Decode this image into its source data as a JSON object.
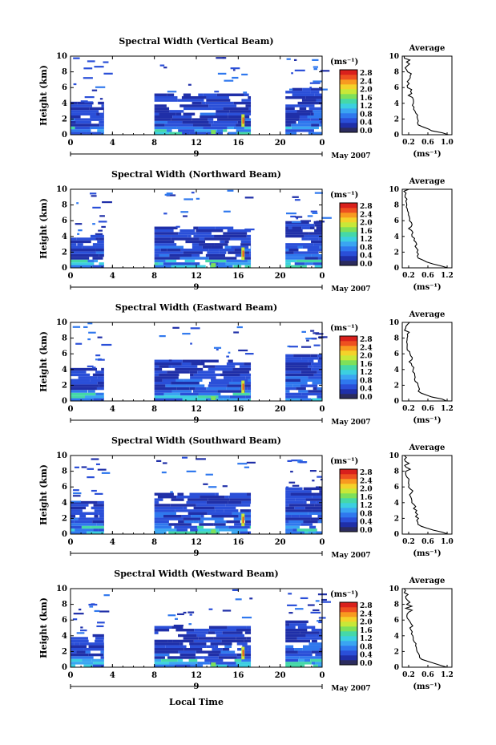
{
  "chart_data": [
    {
      "type": "heatmap",
      "title": "Spectral Width (Vertical Beam)",
      "ylabel": "Height (km)",
      "xticks": [
        "0",
        "4",
        "8",
        "12",
        "16",
        "20",
        "0"
      ],
      "yticks": [
        "0",
        "2",
        "4",
        "6",
        "8",
        "10"
      ],
      "date_label": "May 2007",
      "day_label": "9",
      "colorbar_unit": "(ms⁻¹)",
      "colorbar_ticks": [
        "0.0",
        "0.4",
        "0.8",
        "1.2",
        "1.6",
        "2.0",
        "2.4",
        "2.8"
      ],
      "avg": {
        "title": "Average",
        "xlabel": "(ms⁻¹)",
        "xticks": [
          "0.2",
          "0.6",
          "1.0"
        ],
        "yticks": [
          "0",
          "2",
          "4",
          "6",
          "8",
          "10"
        ]
      }
    },
    {
      "type": "heatmap",
      "title": "Spectral Width (Northward Beam)",
      "ylabel": "Height (km)",
      "xticks": [
        "0",
        "4",
        "8",
        "12",
        "16",
        "20",
        "0"
      ],
      "yticks": [
        "0",
        "2",
        "4",
        "6",
        "8",
        "10"
      ],
      "date_label": "May 2007",
      "day_label": "9",
      "colorbar_unit": "(ms⁻¹)",
      "colorbar_ticks": [
        "0.0",
        "0.4",
        "0.8",
        "1.2",
        "1.6",
        "2.0",
        "2.4",
        "2.8"
      ],
      "avg": {
        "title": "Average",
        "xlabel": "(ms⁻¹)",
        "xticks": [
          "0.2",
          "0.6",
          "1.2"
        ],
        "yticks": [
          "0",
          "2",
          "4",
          "6",
          "8",
          "10"
        ]
      }
    },
    {
      "type": "heatmap",
      "title": "Spectral Width (Eastward Beam)",
      "ylabel": "Height (km)",
      "xticks": [
        "0",
        "4",
        "8",
        "12",
        "16",
        "20",
        "0"
      ],
      "yticks": [
        "0",
        "2",
        "4",
        "6",
        "8",
        "10"
      ],
      "date_label": "May 2007",
      "day_label": "9",
      "colorbar_unit": "(ms⁻¹)",
      "colorbar_ticks": [
        "0.0",
        "0.4",
        "0.8",
        "1.2",
        "1.6",
        "2.0",
        "2.4",
        "2.8"
      ],
      "avg": {
        "title": "Average",
        "xlabel": "(ms⁻¹)",
        "xticks": [
          "0.2",
          "0.6",
          "1.2"
        ],
        "yticks": [
          "0",
          "2",
          "4",
          "6",
          "8",
          "10"
        ]
      }
    },
    {
      "type": "heatmap",
      "title": "Spectral Width (Southward Beam)",
      "ylabel": "Height (km)",
      "xticks": [
        "0",
        "4",
        "8",
        "12",
        "16",
        "20",
        "0"
      ],
      "yticks": [
        "0",
        "2",
        "4",
        "6",
        "8",
        "10"
      ],
      "date_label": "May 2007",
      "day_label": "9",
      "colorbar_unit": "(ms⁻¹)",
      "colorbar_ticks": [
        "0.0",
        "0.4",
        "0.8",
        "1.2",
        "1.6",
        "2.0",
        "2.4",
        "2.8"
      ],
      "avg": {
        "title": "Average",
        "xlabel": "(ms⁻¹)",
        "xticks": [
          "0.2",
          "0.6",
          "1.0"
        ],
        "yticks": [
          "0",
          "2",
          "4",
          "6",
          "8",
          "10"
        ]
      }
    },
    {
      "type": "heatmap",
      "title": "Spectral Width (Westward Beam)",
      "ylabel": "Height (km)",
      "xticks": [
        "0",
        "4",
        "8",
        "12",
        "16",
        "20",
        "0"
      ],
      "yticks": [
        "0",
        "2",
        "4",
        "6",
        "8",
        "10"
      ],
      "date_label": "May 2007",
      "day_label": "9",
      "colorbar_unit": "(ms⁻¹)",
      "colorbar_ticks": [
        "0.0",
        "0.4",
        "0.8",
        "1.2",
        "1.6",
        "2.0",
        "2.4",
        "2.8"
      ],
      "avg": {
        "title": "Average",
        "xlabel": "(ms⁻¹)",
        "xticks": [
          "0.2",
          "0.6",
          "1.2"
        ],
        "yticks": [
          "0",
          "2",
          "4",
          "6",
          "8",
          "10"
        ]
      }
    }
  ],
  "xlabel": "Local Time",
  "colorscale": [
    "#2b2b5e",
    "#1f2fa8",
    "#2a4fd8",
    "#2f78ee",
    "#3aa5f2",
    "#3ccfe0",
    "#45d8a8",
    "#7ee05a",
    "#c8e838",
    "#f4d22a",
    "#f89a20",
    "#ee5020",
    "#d9201c"
  ]
}
